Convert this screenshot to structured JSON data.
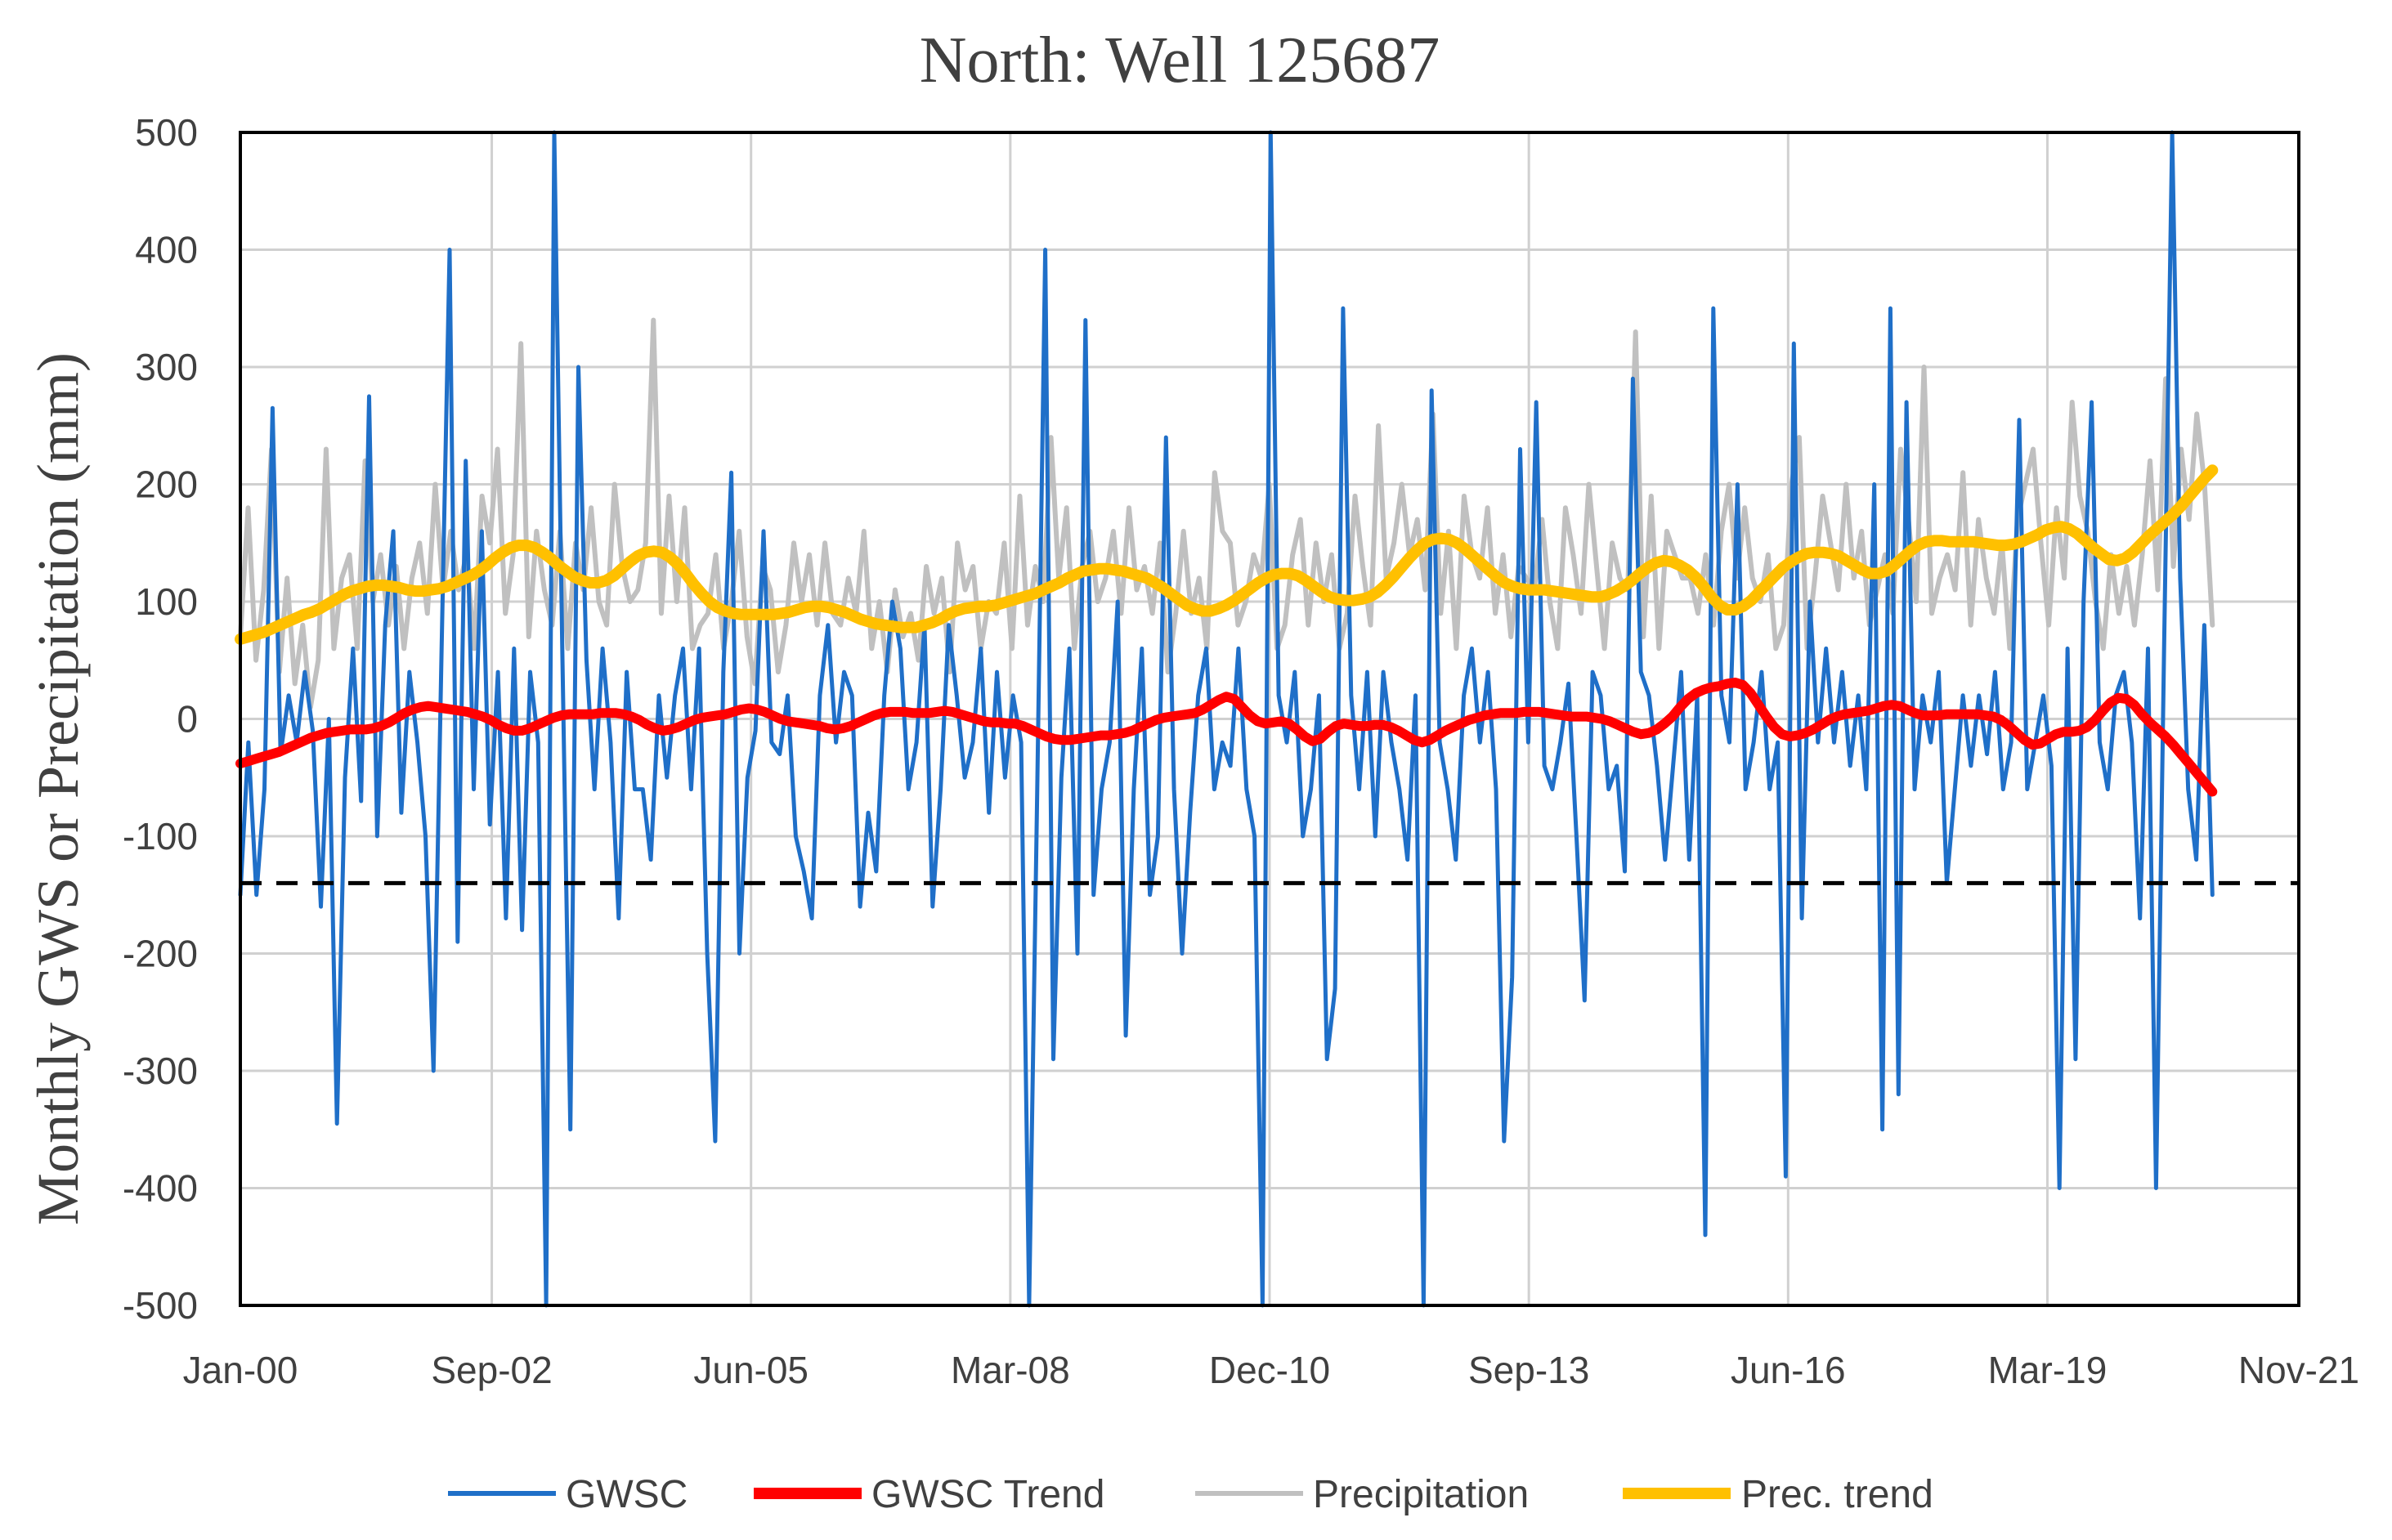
{
  "chart_data": {
    "type": "line",
    "title": "North: Well 125687",
    "ylabel": "Monthly GWS or Precipitation (mm)",
    "xlabel": "",
    "ylim": [
      -500,
      500
    ],
    "y_ticks": [
      "500",
      "400",
      "300",
      "200",
      "100",
      "0",
      "-100",
      "-200",
      "-300",
      "-400",
      "-500"
    ],
    "x_tick_labels": [
      "Jan-00",
      "Sep-02",
      "Jun-05",
      "Mar-08",
      "Dec-10",
      "Sep-13",
      "Jun-16",
      "Mar-19",
      "Nov-21"
    ],
    "x_tick_months": [
      0,
      32,
      65,
      98,
      131,
      164,
      197,
      230,
      262
    ],
    "x_range_months": [
      0,
      262
    ],
    "last_data_month": 251,
    "grid": "vertical and horizontal gridlines at ticks",
    "legend_position": "bottom",
    "threshold_line": {
      "y": -140,
      "style": "dashed",
      "color": "#000000"
    },
    "series": [
      {
        "name": "GWSC",
        "color": "#1f6fc8",
        "width": 5,
        "values": [
          -150,
          -20,
          -150,
          -60,
          265,
          -30,
          20,
          -20,
          40,
          -10,
          -160,
          0,
          -345,
          -50,
          60,
          -70,
          275,
          -100,
          80,
          160,
          -80,
          40,
          -20,
          -100,
          -300,
          60,
          400,
          -190,
          220,
          -60,
          160,
          -90,
          40,
          -170,
          60,
          -180,
          40,
          -20,
          -500,
          500,
          60,
          -350,
          300,
          50,
          -60,
          60,
          -20,
          -170,
          40,
          -60,
          -60,
          -120,
          20,
          -50,
          20,
          60,
          -60,
          60,
          -200,
          -360,
          40,
          210,
          -200,
          -50,
          -10,
          160,
          -20,
          -30,
          20,
          -100,
          -130,
          -170,
          20,
          80,
          -20,
          40,
          20,
          -160,
          -80,
          -130,
          20,
          100,
          60,
          -60,
          -20,
          80,
          -160,
          -60,
          80,
          20,
          -50,
          -20,
          60,
          -80,
          40,
          -50,
          20,
          -20,
          -500,
          -60,
          400,
          -290,
          -50,
          60,
          -200,
          340,
          -150,
          -60,
          -20,
          100,
          -270,
          -60,
          60,
          -150,
          -100,
          240,
          -60,
          -200,
          -80,
          20,
          60,
          -60,
          -20,
          -40,
          60,
          -60,
          -100,
          -500,
          500,
          20,
          -20,
          40,
          -100,
          -60,
          20,
          -290,
          -230,
          350,
          20,
          -60,
          40,
          -100,
          40,
          -20,
          -60,
          -120,
          20,
          -500,
          280,
          -20,
          -60,
          -120,
          20,
          60,
          -20,
          40,
          -60,
          -360,
          -220,
          230,
          -20,
          270,
          -40,
          -60,
          -20,
          30,
          -100,
          -240,
          40,
          20,
          -60,
          -40,
          -130,
          290,
          40,
          20,
          -40,
          -120,
          -40,
          40,
          -120,
          20,
          -440,
          350,
          20,
          -20,
          200,
          -60,
          -20,
          40,
          -60,
          -20,
          -390,
          320,
          -170,
          100,
          -20,
          60,
          -20,
          40,
          -40,
          20,
          -60,
          200,
          -350,
          350,
          -320,
          270,
          -60,
          20,
          -20,
          40,
          -140,
          -60,
          20,
          -40,
          20,
          -30,
          40,
          -60,
          -20,
          255,
          -60,
          -20,
          20,
          -40,
          -400,
          60,
          -290,
          100,
          270,
          -20,
          -60,
          20,
          40,
          -20,
          -170,
          60,
          -400,
          60,
          500,
          120,
          -60,
          -120,
          80,
          -150
        ],
        "data_name": "gwsc-line"
      },
      {
        "name": "GWSC Trend",
        "color": "#ff0000",
        "width": 12,
        "values": [
          -38,
          -36,
          -34,
          -32,
          -30,
          -28,
          -25,
          -22,
          -19,
          -16,
          -14,
          -12,
          -11,
          -10,
          -9,
          -9,
          -9,
          -8,
          -6,
          -3,
          1,
          5,
          8,
          10,
          11,
          10,
          9,
          8,
          7,
          6,
          4,
          2,
          -1,
          -5,
          -8,
          -10,
          -10,
          -8,
          -5,
          -2,
          1,
          3,
          4,
          4,
          4,
          4,
          5,
          5,
          5,
          4,
          2,
          -1,
          -5,
          -8,
          -10,
          -9,
          -7,
          -4,
          -1,
          1,
          2,
          3,
          4,
          6,
          8,
          9,
          8,
          6,
          3,
          0,
          -2,
          -3,
          -4,
          -5,
          -6,
          -8,
          -9,
          -8,
          -6,
          -3,
          0,
          3,
          5,
          6,
          6,
          6,
          5,
          5,
          5,
          6,
          7,
          6,
          4,
          2,
          0,
          -2,
          -3,
          -3,
          -4,
          -4,
          -6,
          -9,
          -12,
          -15,
          -17,
          -18,
          -18,
          -17,
          -16,
          -15,
          -14,
          -14,
          -13,
          -12,
          -10,
          -7,
          -4,
          -1,
          1,
          2,
          3,
          4,
          5,
          8,
          12,
          16,
          19,
          17,
          10,
          3,
          -2,
          -4,
          -3,
          -2,
          -4,
          -9,
          -15,
          -19,
          -17,
          -11,
          -6,
          -4,
          -5,
          -6,
          -6,
          -5,
          -5,
          -7,
          -10,
          -14,
          -18,
          -20,
          -18,
          -14,
          -10,
          -7,
          -4,
          -1,
          1,
          3,
          4,
          5,
          5,
          5,
          6,
          6,
          6,
          5,
          4,
          3,
          2,
          2,
          2,
          1,
          0,
          -2,
          -5,
          -8,
          -11,
          -13,
          -12,
          -9,
          -4,
          2,
          10,
          17,
          22,
          25,
          27,
          28,
          30,
          31,
          29,
          22,
          12,
          2,
          -7,
          -13,
          -15,
          -14,
          -12,
          -9,
          -5,
          -1,
          2,
          4,
          5,
          6,
          7,
          9,
          11,
          12,
          11,
          8,
          5,
          3,
          3,
          3,
          4,
          4,
          4,
          4,
          4,
          3,
          2,
          -1,
          -6,
          -12,
          -18,
          -22,
          -21,
          -17,
          -13,
          -11,
          -11,
          -10,
          -7,
          -1,
          7,
          14,
          18,
          17,
          12,
          4,
          -3,
          -9,
          -15,
          -22,
          -30,
          -38,
          -46,
          -54,
          -62
        ]
      },
      {
        "name": "Precipitation",
        "color": "#c0c0c0",
        "width": 6,
        "values": [
          70,
          180,
          50,
          110,
          230,
          40,
          120,
          30,
          80,
          10,
          50,
          230,
          60,
          120,
          140,
          60,
          220,
          100,
          140,
          80,
          130,
          60,
          120,
          150,
          90,
          200,
          110,
          160,
          110,
          140,
          60,
          190,
          150,
          230,
          90,
          140,
          320,
          70,
          160,
          110,
          80,
          160,
          60,
          150,
          110,
          180,
          100,
          80,
          200,
          130,
          100,
          110,
          150,
          340,
          90,
          190,
          100,
          180,
          60,
          80,
          90,
          140,
          60,
          100,
          160,
          70,
          30,
          130,
          110,
          40,
          80,
          150,
          100,
          140,
          80,
          150,
          90,
          80,
          120,
          90,
          160,
          60,
          100,
          40,
          110,
          70,
          90,
          50,
          130,
          90,
          120,
          40,
          150,
          110,
          130,
          60,
          100,
          90,
          150,
          60,
          190,
          80,
          130,
          100,
          240,
          120,
          180,
          60,
          130,
          160,
          100,
          120,
          160,
          90,
          180,
          110,
          130,
          90,
          150,
          40,
          90,
          160,
          90,
          120,
          60,
          210,
          160,
          150,
          80,
          100,
          140,
          120,
          200,
          60,
          80,
          140,
          170,
          80,
          150,
          100,
          140,
          60,
          90,
          190,
          130,
          80,
          250,
          120,
          150,
          200,
          140,
          170,
          110,
          260,
          90,
          160,
          60,
          190,
          140,
          120,
          180,
          90,
          140,
          70,
          130,
          120,
          110,
          170,
          100,
          60,
          180,
          140,
          90,
          200,
          130,
          60,
          150,
          120,
          110,
          330,
          70,
          190,
          60,
          160,
          140,
          120,
          120,
          90,
          140,
          80,
          160,
          200,
          120,
          180,
          120,
          100,
          140,
          60,
          80,
          200,
          240,
          60,
          120,
          190,
          150,
          110,
          200,
          120,
          160,
          80,
          110,
          140,
          90,
          230,
          170,
          100,
          300,
          90,
          120,
          140,
          110,
          210,
          80,
          170,
          120,
          90,
          150,
          60,
          170,
          200,
          230,
          150,
          80,
          180,
          120,
          270,
          190,
          160,
          100,
          60,
          140,
          90,
          130,
          80,
          140,
          220,
          110,
          290,
          130,
          230,
          170,
          260,
          200,
          80
        ]
      },
      {
        "name": "Prec. trend",
        "color": "#ffc000",
        "width": 14,
        "values": [
          68,
          70,
          72,
          74,
          77,
          80,
          83,
          86,
          89,
          91,
          94,
          98,
          102,
          106,
          109,
          111,
          113,
          114,
          114,
          113,
          112,
          110,
          109,
          109,
          110,
          111,
          113,
          116,
          119,
          122,
          126,
          131,
          137,
          142,
          146,
          148,
          148,
          146,
          142,
          137,
          131,
          126,
          121,
          118,
          116,
          116,
          118,
          122,
          128,
          134,
          139,
          142,
          143,
          142,
          138,
          132,
          124,
          115,
          107,
          100,
          95,
          92,
          90,
          89,
          89,
          89,
          89,
          89,
          90,
          91,
          93,
          95,
          96,
          96,
          95,
          93,
          91,
          88,
          85,
          83,
          81,
          80,
          79,
          78,
          78,
          78,
          80,
          82,
          85,
          89,
          92,
          94,
          95,
          96,
          96,
          97,
          99,
          101,
          103,
          105,
          107,
          110,
          113,
          116,
          120,
          123,
          126,
          127,
          128,
          128,
          127,
          126,
          124,
          122,
          120,
          116,
          112,
          107,
          102,
          97,
          94,
          92,
          92,
          94,
          97,
          101,
          106,
          111,
          116,
          120,
          123,
          124,
          124,
          122,
          118,
          113,
          108,
          104,
          102,
          101,
          101,
          102,
          104,
          108,
          114,
          121,
          129,
          137,
          144,
          150,
          153,
          154,
          153,
          150,
          145,
          139,
          133,
          127,
          121,
          116,
          113,
          111,
          110,
          110,
          110,
          109,
          108,
          107,
          106,
          105,
          104,
          104,
          106,
          109,
          113,
          118,
          124,
          129,
          133,
          135,
          134,
          131,
          127,
          121,
          113,
          104,
          97,
          93,
          93,
          96,
          101,
          108,
          115,
          122,
          129,
          134,
          138,
          141,
          142,
          142,
          141,
          139,
          135,
          131,
          127,
          124,
          124,
          126,
          131,
          137,
          143,
          148,
          151,
          152,
          152,
          151,
          151,
          151,
          151,
          150,
          149,
          148,
          148,
          149,
          151,
          154,
          157,
          161,
          163,
          164,
          162,
          158,
          152,
          146,
          141,
          136,
          135,
          137,
          142,
          149,
          156,
          162,
          168,
          174,
          181,
          189,
          197,
          205,
          212
        ]
      }
    ]
  }
}
